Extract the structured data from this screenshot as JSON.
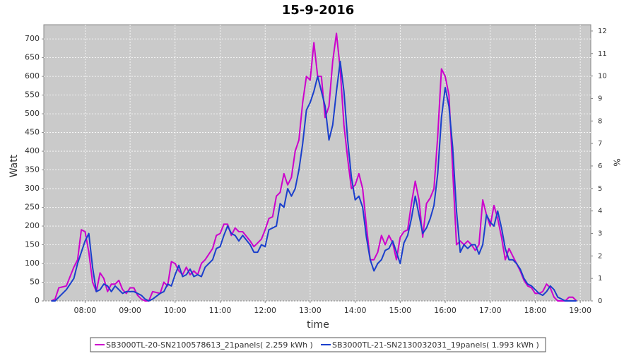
{
  "chart_data": {
    "type": "line",
    "title": "15-9-2016",
    "x_label": "time",
    "y_label": "Watt",
    "y2_label": "%",
    "x": [
      "07:15",
      "07:20",
      "07:25",
      "07:35",
      "07:45",
      "07:50",
      "07:55",
      "08:00",
      "08:05",
      "08:10",
      "08:15",
      "08:20",
      "08:25",
      "08:30",
      "08:35",
      "08:40",
      "08:45",
      "08:50",
      "08:55",
      "09:00",
      "09:05",
      "09:10",
      "09:15",
      "09:20",
      "09:25",
      "09:30",
      "09:40",
      "09:45",
      "09:50",
      "09:55",
      "10:00",
      "10:05",
      "10:10",
      "10:15",
      "10:20",
      "10:25",
      "10:30",
      "10:35",
      "10:40",
      "10:50",
      "10:55",
      "11:00",
      "11:05",
      "11:10",
      "11:15",
      "11:20",
      "11:25",
      "11:30",
      "11:40",
      "11:45",
      "11:50",
      "11:55",
      "12:00",
      "12:05",
      "12:10",
      "12:15",
      "12:20",
      "12:25",
      "12:30",
      "12:35",
      "12:40",
      "12:45",
      "12:50",
      "12:55",
      "13:00",
      "13:05",
      "13:10",
      "13:15",
      "13:20",
      "13:25",
      "13:30",
      "13:35",
      "13:40",
      "13:45",
      "13:50",
      "13:55",
      "14:00",
      "14:05",
      "14:10",
      "14:15",
      "14:20",
      "14:25",
      "14:30",
      "14:35",
      "14:40",
      "14:45",
      "14:50",
      "14:55",
      "15:00",
      "15:05",
      "15:10",
      "15:15",
      "15:20",
      "15:25",
      "15:30",
      "15:35",
      "15:40",
      "15:45",
      "15:50",
      "15:55",
      "16:00",
      "16:05",
      "16:10",
      "16:15",
      "16:20",
      "16:25",
      "16:30",
      "16:35",
      "16:40",
      "16:45",
      "16:50",
      "16:55",
      "17:00",
      "17:05",
      "17:10",
      "17:15",
      "17:20",
      "17:25",
      "17:30",
      "17:35",
      "17:40",
      "17:45",
      "17:50",
      "17:55",
      "18:00",
      "18:05",
      "18:10",
      "18:15",
      "18:20",
      "18:25",
      "18:30",
      "18:40",
      "18:45",
      "18:50",
      "18:55"
    ],
    "series": [
      {
        "name": "SB3000TL-20-SN2100578613_21panels( 2.259 kWh )",
        "color": "#cc00cc",
        "values": [
          0,
          5,
          35,
          40,
          90,
          110,
          190,
          185,
          130,
          50,
          25,
          75,
          60,
          25,
          45,
          45,
          55,
          30,
          20,
          35,
          35,
          15,
          5,
          0,
          0,
          25,
          20,
          50,
          40,
          105,
          100,
          80,
          70,
          90,
          70,
          80,
          70,
          100,
          110,
          140,
          175,
          180,
          205,
          205,
          175,
          195,
          185,
          185,
          160,
          145,
          155,
          165,
          190,
          220,
          225,
          280,
          290,
          340,
          310,
          330,
          400,
          430,
          530,
          600,
          590,
          690,
          600,
          600,
          490,
          520,
          640,
          715,
          620,
          470,
          380,
          300,
          310,
          340,
          300,
          200,
          110,
          110,
          130,
          175,
          150,
          175,
          155,
          110,
          170,
          185,
          190,
          260,
          320,
          270,
          170,
          260,
          275,
          300,
          440,
          620,
          600,
          550,
          350,
          150,
          160,
          150,
          160,
          150,
          135,
          150,
          270,
          230,
          200,
          255,
          220,
          170,
          110,
          140,
          120,
          100,
          80,
          55,
          40,
          35,
          20,
          20,
          25,
          45,
          35,
          10,
          0,
          0,
          10,
          10,
          0
        ]
      },
      {
        "name": "SB3000TL-21-SN2130032031_19panels( 1.993 kWh )",
        "color": "#1a3fcc",
        "values": [
          0,
          0,
          10,
          30,
          60,
          100,
          130,
          160,
          180,
          90,
          25,
          30,
          45,
          40,
          25,
          40,
          30,
          20,
          25,
          25,
          25,
          20,
          15,
          5,
          0,
          5,
          20,
          25,
          45,
          40,
          70,
          95,
          65,
          70,
          85,
          65,
          70,
          65,
          90,
          110,
          140,
          145,
          175,
          200,
          180,
          175,
          160,
          175,
          150,
          130,
          130,
          150,
          145,
          190,
          195,
          200,
          260,
          250,
          300,
          280,
          300,
          350,
          420,
          510,
          530,
          560,
          600,
          560,
          520,
          430,
          470,
          560,
          640,
          560,
          430,
          330,
          270,
          280,
          250,
          170,
          110,
          80,
          100,
          110,
          135,
          140,
          160,
          130,
          100,
          155,
          175,
          220,
          280,
          230,
          180,
          195,
          220,
          255,
          340,
          490,
          570,
          520,
          410,
          240,
          130,
          150,
          140,
          150,
          150,
          125,
          150,
          230,
          210,
          200,
          240,
          195,
          140,
          110,
          110,
          100,
          85,
          60,
          45,
          40,
          30,
          20,
          15,
          25,
          40,
          30,
          10,
          0,
          0,
          0,
          0
        ]
      }
    ],
    "xlim": [
      "07:05",
      "19:14"
    ],
    "xticks": [
      "08:00",
      "09:00",
      "10:00",
      "11:00",
      "12:00",
      "13:00",
      "14:00",
      "15:00",
      "16:00",
      "17:00",
      "18:00",
      "19:00"
    ],
    "ylim": [
      0,
      738
    ],
    "yticks": [
      0,
      50,
      100,
      150,
      200,
      250,
      300,
      350,
      400,
      450,
      500,
      550,
      600,
      650,
      700
    ],
    "y2lim": [
      0,
      12.28
    ],
    "y2ticks": [
      0,
      1,
      2,
      3,
      4,
      5,
      6,
      7,
      8,
      9,
      10,
      11,
      12
    ],
    "grid": true,
    "legend": "bottom"
  }
}
